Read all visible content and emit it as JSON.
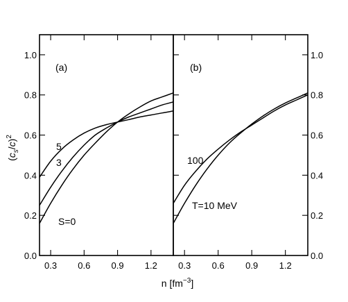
{
  "chart_data": {
    "type": "line",
    "shared_ylabel": "(c_s/c)^2",
    "shared_xlabel": "n [fm^-3]",
    "ylim": [
      0.0,
      1.1
    ],
    "yticks": [
      0.0,
      0.2,
      0.4,
      0.6,
      0.8,
      1.0
    ],
    "ytick_labels": [
      "0.0",
      "0.2",
      "0.4",
      "0.6",
      "0.8",
      "1.0"
    ],
    "panels": [
      {
        "label": "(a)",
        "xlim": [
          0.2,
          1.4
        ],
        "xticks": [
          0.3,
          0.6,
          0.9,
          1.2
        ],
        "xtick_labels": [
          "0.3",
          "0.6",
          "0.9",
          "1.2"
        ],
        "series": [
          {
            "name": "S=0",
            "x": [
              0.2,
              0.3,
              0.4,
              0.5,
              0.6,
              0.7,
              0.8,
              0.9,
              1.0,
              1.1,
              1.2,
              1.3,
              1.4
            ],
            "y": [
              0.16,
              0.26,
              0.35,
              0.43,
              0.5,
              0.56,
              0.616,
              0.665,
              0.705,
              0.74,
              0.77,
              0.79,
              0.81
            ]
          },
          {
            "name": "3",
            "x": [
              0.2,
              0.3,
              0.4,
              0.5,
              0.6,
              0.7,
              0.8,
              0.9,
              1.0,
              1.1,
              1.2,
              1.3,
              1.4
            ],
            "y": [
              0.25,
              0.34,
              0.42,
              0.49,
              0.55,
              0.6,
              0.635,
              0.665,
              0.69,
              0.71,
              0.73,
              0.75,
              0.765
            ]
          },
          {
            "name": "5",
            "x": [
              0.2,
              0.3,
              0.4,
              0.5,
              0.6,
              0.7,
              0.8,
              0.9,
              1.0,
              1.1,
              1.2,
              1.3,
              1.4
            ],
            "y": [
              0.39,
              0.47,
              0.53,
              0.575,
              0.61,
              0.635,
              0.652,
              0.665,
              0.677,
              0.69,
              0.7,
              0.71,
              0.72
            ]
          }
        ]
      },
      {
        "label": "(b)",
        "xlim": [
          0.2,
          1.4
        ],
        "xticks": [
          0.3,
          0.6,
          0.9,
          1.2
        ],
        "xtick_labels": [
          "0.3",
          "0.6",
          "0.9",
          "1.2"
        ],
        "series": [
          {
            "name": "T=10 MeV",
            "x": [
              0.2,
              0.3,
              0.4,
              0.5,
              0.6,
              0.7,
              0.8,
              0.9,
              1.0,
              1.1,
              1.2,
              1.3,
              1.4
            ],
            "y": [
              0.16,
              0.26,
              0.35,
              0.43,
              0.5,
              0.56,
              0.61,
              0.655,
              0.695,
              0.73,
              0.76,
              0.785,
              0.81
            ]
          },
          {
            "name": "100",
            "x": [
              0.2,
              0.3,
              0.4,
              0.5,
              0.6,
              0.7,
              0.8,
              0.9,
              1.0,
              1.1,
              1.2,
              1.3,
              1.4
            ],
            "y": [
              0.26,
              0.35,
              0.42,
              0.48,
              0.53,
              0.575,
              0.615,
              0.65,
              0.685,
              0.72,
              0.75,
              0.775,
              0.8
            ]
          }
        ]
      }
    ]
  }
}
